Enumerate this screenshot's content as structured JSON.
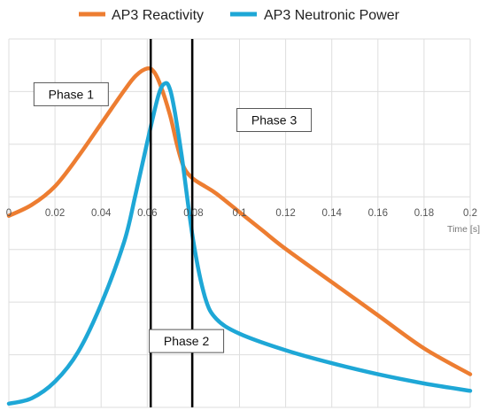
{
  "chart_data": {
    "type": "line",
    "title": "",
    "xlabel": "Time [s]",
    "ylabel": "",
    "xlim": [
      0,
      0.2
    ],
    "ylim": [
      0,
      1
    ],
    "x_ticks": [
      "0",
      "0.02",
      "0.04",
      "0.06",
      "0.08",
      "0.1",
      "0.12",
      "0.14",
      "0.16",
      "0.18",
      "0.2"
    ],
    "grid": true,
    "legend_position": "top",
    "series": [
      {
        "name": "AP3 Reactivity",
        "color": "#ed7d31",
        "x": [
          0,
          0.01,
          0.02,
          0.03,
          0.04,
          0.05,
          0.055,
          0.06,
          0.063,
          0.066,
          0.07,
          0.073,
          0.076,
          0.08,
          0.085,
          0.09,
          0.1,
          0.11,
          0.12,
          0.14,
          0.16,
          0.18,
          0.2
        ],
        "values": [
          0.52,
          0.55,
          0.6,
          0.68,
          0.77,
          0.86,
          0.9,
          0.92,
          0.91,
          0.87,
          0.79,
          0.71,
          0.65,
          0.62,
          0.6,
          0.58,
          0.53,
          0.48,
          0.43,
          0.34,
          0.25,
          0.16,
          0.09
        ]
      },
      {
        "name": "AP3 Neutronic Power",
        "color": "#1ea7d6",
        "x": [
          0,
          0.01,
          0.02,
          0.03,
          0.04,
          0.05,
          0.055,
          0.06,
          0.065,
          0.068,
          0.07,
          0.072,
          0.075,
          0.08,
          0.085,
          0.09,
          0.1,
          0.12,
          0.14,
          0.16,
          0.18,
          0.2
        ],
        "values": [
          0.01,
          0.025,
          0.07,
          0.15,
          0.28,
          0.45,
          0.58,
          0.72,
          0.85,
          0.88,
          0.86,
          0.8,
          0.68,
          0.45,
          0.3,
          0.24,
          0.2,
          0.155,
          0.12,
          0.09,
          0.065,
          0.045
        ]
      }
    ],
    "vertical_lines": [
      0.0615,
      0.0795
    ],
    "annotations": [
      {
        "text": "Phase 1",
        "x": 0.027,
        "y": 0.85
      },
      {
        "text": "Phase 2",
        "x": 0.077,
        "y": 0.18
      },
      {
        "text": "Phase 3",
        "x": 0.115,
        "y": 0.78
      }
    ]
  }
}
